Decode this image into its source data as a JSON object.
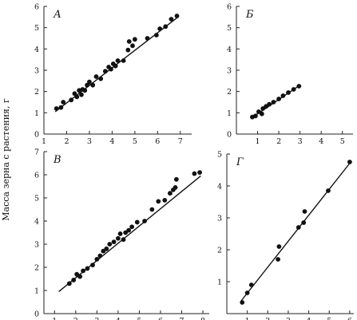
{
  "figure": {
    "ylabel": "Масса зерна с растения, г"
  },
  "chart_data": [
    {
      "type": "scatter",
      "panel_label": "А",
      "xlim": [
        1,
        7.5
      ],
      "ylim": [
        0,
        6
      ],
      "xticks": [
        1,
        2,
        3,
        4,
        5,
        6,
        7
      ],
      "yticks": [
        0,
        1,
        2,
        3,
        4,
        5,
        6
      ],
      "points": [
        [
          1.55,
          1.2
        ],
        [
          1.75,
          1.25
        ],
        [
          1.85,
          1.5
        ],
        [
          2.2,
          1.6
        ],
        [
          2.35,
          1.9
        ],
        [
          2.45,
          1.75
        ],
        [
          2.55,
          2.05
        ],
        [
          2.65,
          1.85
        ],
        [
          2.7,
          2.1
        ],
        [
          2.8,
          2.05
        ],
        [
          2.9,
          2.3
        ],
        [
          3.0,
          2.45
        ],
        [
          3.15,
          2.3
        ],
        [
          3.3,
          2.7
        ],
        [
          3.5,
          2.6
        ],
        [
          3.7,
          2.95
        ],
        [
          3.85,
          3.15
        ],
        [
          3.95,
          3.05
        ],
        [
          4.05,
          3.3
        ],
        [
          4.15,
          3.2
        ],
        [
          4.25,
          3.45
        ],
        [
          4.5,
          3.45
        ],
        [
          4.7,
          3.95
        ],
        [
          4.75,
          4.35
        ],
        [
          4.9,
          4.15
        ],
        [
          5.0,
          4.45
        ],
        [
          5.55,
          4.5
        ],
        [
          5.95,
          4.65
        ],
        [
          6.1,
          4.95
        ],
        [
          6.35,
          5.05
        ],
        [
          6.6,
          5.4
        ],
        [
          6.85,
          5.55
        ]
      ],
      "fit_line": [
        [
          1.5,
          1.05
        ],
        [
          6.9,
          5.5
        ]
      ]
    },
    {
      "type": "scatter",
      "panel_label": "Б",
      "xlim": [
        0,
        5.5
      ],
      "ylim": [
        0,
        6
      ],
      "xticks": [
        1,
        2,
        3,
        4,
        5
      ],
      "yticks": [
        0,
        1,
        2,
        3,
        4,
        5,
        6
      ],
      "points": [
        [
          0.75,
          0.8
        ],
        [
          0.9,
          0.85
        ],
        [
          1.05,
          1.05
        ],
        [
          1.2,
          0.95
        ],
        [
          1.25,
          1.2
        ],
        [
          1.4,
          1.3
        ],
        [
          1.55,
          1.4
        ],
        [
          1.75,
          1.5
        ],
        [
          2.0,
          1.65
        ],
        [
          2.2,
          1.8
        ],
        [
          2.45,
          1.95
        ],
        [
          2.7,
          2.1
        ],
        [
          2.95,
          2.25
        ]
      ],
      "fit_line": [
        [
          0.7,
          0.75
        ],
        [
          3.0,
          2.3
        ]
      ]
    },
    {
      "type": "scatter",
      "panel_label": "В",
      "xlim": [
        0.5,
        8.3
      ],
      "ylim": [
        0,
        7
      ],
      "xticks": [
        1,
        2,
        3,
        4,
        5,
        6,
        7,
        8
      ],
      "yticks": [
        0,
        1,
        2,
        3,
        4,
        5,
        6,
        7
      ],
      "points": [
        [
          1.7,
          1.3
        ],
        [
          1.9,
          1.45
        ],
        [
          2.05,
          1.7
        ],
        [
          2.2,
          1.6
        ],
        [
          2.35,
          1.85
        ],
        [
          2.55,
          1.95
        ],
        [
          2.8,
          2.1
        ],
        [
          3.0,
          2.35
        ],
        [
          3.15,
          2.5
        ],
        [
          3.3,
          2.7
        ],
        [
          3.45,
          2.8
        ],
        [
          3.6,
          3.0
        ],
        [
          3.8,
          3.1
        ],
        [
          4.0,
          3.25
        ],
        [
          4.1,
          3.45
        ],
        [
          4.25,
          3.2
        ],
        [
          4.35,
          3.5
        ],
        [
          4.5,
          3.6
        ],
        [
          4.65,
          3.75
        ],
        [
          4.9,
          3.95
        ],
        [
          5.25,
          4.0
        ],
        [
          5.6,
          4.5
        ],
        [
          5.9,
          4.85
        ],
        [
          6.2,
          4.9
        ],
        [
          6.45,
          5.2
        ],
        [
          6.6,
          5.35
        ],
        [
          6.7,
          5.45
        ],
        [
          6.75,
          5.8
        ],
        [
          7.6,
          6.05
        ],
        [
          7.85,
          6.1
        ]
      ],
      "fit_line": [
        [
          1.2,
          0.95
        ],
        [
          7.9,
          5.95
        ]
      ]
    },
    {
      "type": "scatter",
      "panel_label": "Г",
      "xlim": [
        0,
        6.2
      ],
      "ylim": [
        0,
        5
      ],
      "xticks": [
        1,
        2,
        3,
        4,
        5,
        6
      ],
      "yticks": [
        1,
        2,
        3,
        4,
        5
      ],
      "points": [
        [
          0.75,
          0.35
        ],
        [
          1.0,
          0.65
        ],
        [
          1.2,
          0.9
        ],
        [
          2.5,
          1.7
        ],
        [
          2.55,
          2.1
        ],
        [
          3.5,
          2.7
        ],
        [
          3.75,
          2.85
        ],
        [
          3.8,
          3.2
        ],
        [
          4.95,
          3.85
        ],
        [
          6.0,
          4.75
        ]
      ],
      "fit_line": [
        [
          0.7,
          0.4
        ],
        [
          6.05,
          4.75
        ]
      ]
    }
  ]
}
